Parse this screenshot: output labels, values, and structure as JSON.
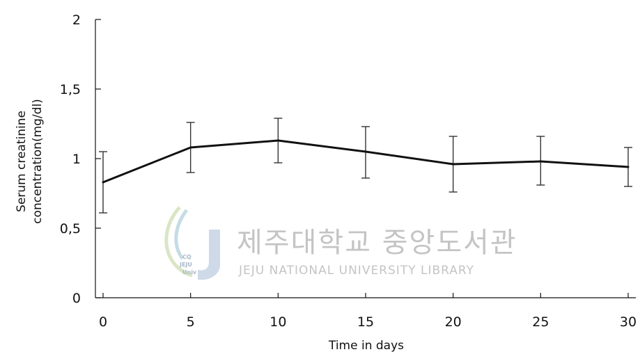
{
  "chart_data": {
    "type": "line",
    "title": "",
    "xlabel": "Time in days",
    "ylabel": [
      "Serum  creatinine",
      "concentration(mg/dl)"
    ],
    "xlim": [
      0,
      30
    ],
    "ylim": [
      0,
      2
    ],
    "x_ticks": [
      0,
      5,
      10,
      15,
      20,
      25,
      30
    ],
    "x_tick_labels": [
      "0",
      "5",
      "10",
      "15",
      "20",
      "25",
      "30"
    ],
    "y_ticks": [
      0,
      0.5,
      1,
      1.5,
      2
    ],
    "y_tick_labels": [
      "0",
      "0,5",
      "1",
      "1,5",
      "2"
    ],
    "grid": false,
    "series": [
      {
        "x": [
          0,
          5,
          10,
          15,
          20,
          25,
          30
        ],
        "values": [
          0.83,
          1.08,
          1.13,
          1.05,
          0.96,
          0.98,
          0.94
        ],
        "err_low": [
          0.61,
          0.9,
          0.97,
          0.86,
          0.76,
          0.81,
          0.8
        ],
        "err_high": [
          1.05,
          1.26,
          1.29,
          1.23,
          1.16,
          1.16,
          1.08
        ],
        "color": "#111111"
      }
    ]
  },
  "watermark": {
    "korean": "제주대학교 중앙도서관",
    "english": "JEJU NATIONAL UNIVERSITY  LIBRARY",
    "logo_text": [
      "CQ",
      "JEJU",
      "Univ"
    ]
  }
}
